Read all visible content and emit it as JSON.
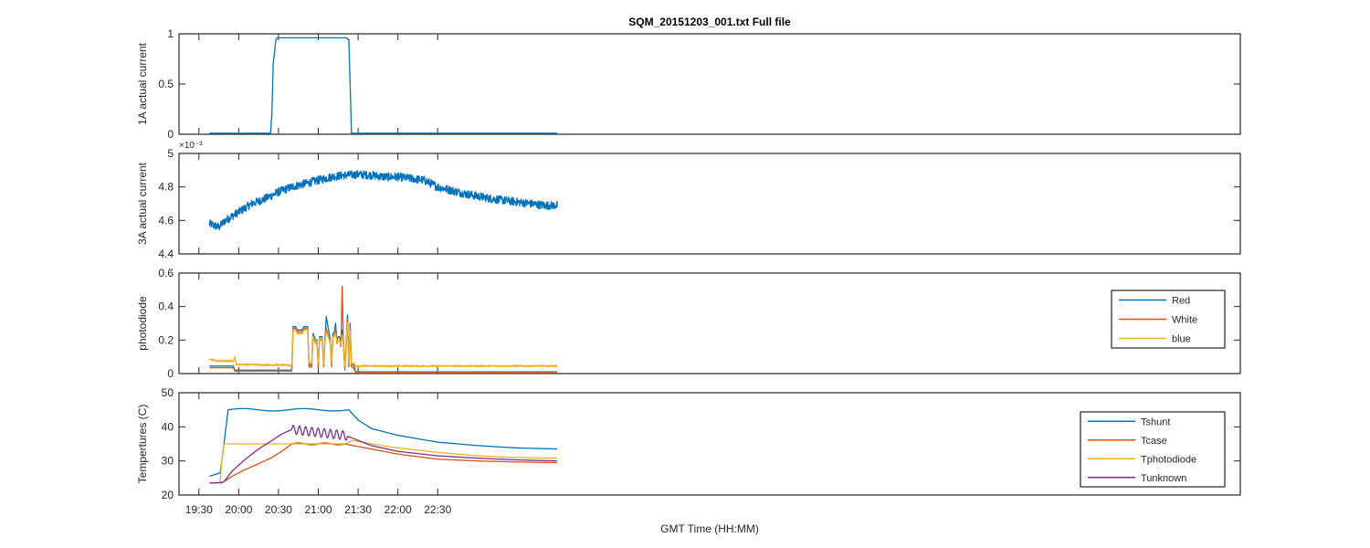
{
  "figure_title": "SQM_20151203_001.txt  Full file",
  "xlabel": "GMT Time (HH:MM)",
  "chart_data": [
    {
      "type": "line",
      "id": "p1",
      "ylabel": "1A actual current",
      "xlim": [
        1155,
        1955
      ],
      "ylim": [
        0,
        1
      ],
      "yticks": [
        0,
        0.5,
        1
      ],
      "ytick_labels": [
        "0",
        "0.5",
        "1"
      ],
      "legend": null,
      "series": [
        {
          "name": "1A actual current",
          "color": "#0072BD",
          "x": [
            1178,
            1224,
            1225,
            1226,
            1228,
            1229,
            1281,
            1283,
            1284,
            1285,
            1440
          ],
          "y": [
            0.01,
            0.01,
            0.2,
            0.7,
            0.94,
            0.96,
            0.96,
            0.94,
            0.5,
            0.01,
            0.01
          ]
        }
      ]
    },
    {
      "type": "line",
      "id": "p2",
      "ylabel": "3A actual current",
      "yexponent": "×10⁻³",
      "xlim": [
        1155,
        1955
      ],
      "ylim": [
        4.4,
        5
      ],
      "yticks": [
        4.4,
        4.6,
        4.8,
        5
      ],
      "ytick_labels": [
        "4.4",
        "4.6",
        "4.8",
        "5"
      ],
      "legend": null,
      "series": [
        {
          "name": "3A actual current",
          "color": "#0072BD",
          "x": [
            1178,
            1185,
            1190,
            1200,
            1210,
            1220,
            1230,
            1240,
            1250,
            1260,
            1270,
            1280,
            1290,
            1300,
            1310,
            1320,
            1330,
            1340,
            1350,
            1360,
            1370,
            1380,
            1390,
            1400,
            1410,
            1420,
            1430,
            1440
          ],
          "y": [
            4.58,
            4.56,
            4.6,
            4.65,
            4.7,
            4.73,
            4.77,
            4.8,
            4.82,
            4.84,
            4.86,
            4.87,
            4.875,
            4.87,
            4.86,
            4.86,
            4.85,
            4.84,
            4.8,
            4.78,
            4.76,
            4.745,
            4.73,
            4.72,
            4.71,
            4.7,
            4.69,
            4.69
          ],
          "noise": 0.025
        }
      ]
    },
    {
      "type": "line",
      "id": "p3",
      "ylabel": "photodiode",
      "xlim": [
        1155,
        1955
      ],
      "ylim": [
        0,
        0.6
      ],
      "yticks": [
        0,
        0.2,
        0.4,
        0.6
      ],
      "ytick_labels": [
        "0",
        "0.2",
        "0.4",
        "0.6"
      ],
      "legend": "top-right",
      "series": [
        {
          "name": "Red",
          "color": "#0072BD",
          "x": [
            1178,
            1196,
            1197,
            1240,
            1241,
            1243,
            1244,
            1248,
            1249,
            1252,
            1253,
            1255,
            1256,
            1258,
            1259,
            1260,
            1261,
            1263,
            1264,
            1265,
            1266,
            1269,
            1270,
            1271,
            1272,
            1273,
            1274,
            1275,
            1276,
            1277,
            1278,
            1279,
            1280,
            1281,
            1282,
            1283,
            1284,
            1285,
            1287,
            1288,
            1440
          ],
          "y": [
            0.045,
            0.045,
            0.02,
            0.02,
            0.28,
            0.28,
            0.26,
            0.26,
            0.28,
            0.28,
            0.05,
            0.05,
            0.24,
            0.2,
            0.2,
            0.05,
            0.22,
            0.22,
            0.05,
            0.2,
            0.34,
            0.2,
            0.05,
            0.24,
            0.24,
            0.3,
            0.2,
            0.22,
            0.22,
            0.18,
            0.26,
            0.18,
            0.03,
            0.18,
            0.35,
            0.05,
            0.3,
            0.05,
            0.05,
            0.01,
            0.01
          ]
        },
        {
          "name": "White",
          "color": "#D95319",
          "x": [
            1178,
            1196,
            1197,
            1240,
            1241,
            1243,
            1244,
            1248,
            1249,
            1252,
            1253,
            1255,
            1256,
            1258,
            1259,
            1260,
            1261,
            1263,
            1264,
            1265,
            1266,
            1269,
            1270,
            1271,
            1272,
            1273,
            1274,
            1275,
            1276,
            1277,
            1278,
            1279,
            1280,
            1281,
            1282,
            1283,
            1284,
            1285,
            1287,
            1288,
            1440
          ],
          "y": [
            0.035,
            0.035,
            0.015,
            0.015,
            0.27,
            0.27,
            0.25,
            0.25,
            0.27,
            0.27,
            0.04,
            0.04,
            0.22,
            0.18,
            0.18,
            0.04,
            0.2,
            0.2,
            0.04,
            0.18,
            0.27,
            0.18,
            0.04,
            0.22,
            0.22,
            0.27,
            0.18,
            0.2,
            0.2,
            0.16,
            0.52,
            0.16,
            0.02,
            0.16,
            0.32,
            0.04,
            0.28,
            0.04,
            0.03,
            0.008,
            0.008
          ]
        },
        {
          "name": "blue",
          "color": "#EDB120",
          "x": [
            1178,
            1185,
            1196,
            1197,
            1198,
            1240,
            1241,
            1243,
            1244,
            1248,
            1249,
            1252,
            1253,
            1255,
            1256,
            1258,
            1259,
            1260,
            1261,
            1263,
            1264,
            1265,
            1266,
            1269,
            1270,
            1271,
            1272,
            1273,
            1274,
            1275,
            1276,
            1277,
            1278,
            1279,
            1280,
            1281,
            1282,
            1283,
            1284,
            1285,
            1287,
            1288,
            1440
          ],
          "y": [
            0.085,
            0.075,
            0.075,
            0.1,
            0.055,
            0.05,
            0.26,
            0.26,
            0.24,
            0.24,
            0.26,
            0.26,
            0.06,
            0.06,
            0.22,
            0.19,
            0.19,
            0.06,
            0.21,
            0.21,
            0.06,
            0.19,
            0.25,
            0.19,
            0.06,
            0.22,
            0.22,
            0.24,
            0.19,
            0.2,
            0.2,
            0.17,
            0.23,
            0.17,
            0.04,
            0.17,
            0.3,
            0.06,
            0.26,
            0.06,
            0.06,
            0.045,
            0.045
          ],
          "noise": 0.005
        }
      ]
    },
    {
      "type": "line",
      "id": "p4",
      "ylabel": "Tempertures (C)",
      "xlim": [
        1155,
        1955
      ],
      "ylim": [
        20,
        50
      ],
      "yticks": [
        20,
        30,
        40,
        50
      ],
      "ytick_labels": [
        "20",
        "30",
        "40",
        "50"
      ],
      "legend": "bottom-right",
      "series": [
        {
          "name": "Tshunt",
          "color": "#0072BD",
          "x": [
            1178,
            1186,
            1188,
            1192,
            1283,
            1290,
            1300,
            1320,
            1350,
            1380,
            1410,
            1440
          ],
          "y": [
            25.5,
            26.5,
            32,
            45,
            45,
            42,
            39.5,
            37.5,
            35.5,
            34.5,
            33.8,
            33.5
          ],
          "wave": [
            1192,
            1283,
            0.35,
            2
          ]
        },
        {
          "name": "Tcase",
          "color": "#D95319",
          "x": [
            1178,
            1186,
            1188,
            1195,
            1205,
            1215,
            1225,
            1235,
            1240,
            1280,
            1286,
            1300,
            1320,
            1350,
            1380,
            1410,
            1440
          ],
          "y": [
            23.5,
            23.7,
            23.7,
            25.5,
            27.5,
            29.2,
            31,
            33.5,
            35,
            35,
            34.5,
            33.5,
            32,
            30.5,
            30,
            29.7,
            29.5
          ],
          "wave": [
            1240,
            1280,
            0.3,
            2
          ]
        },
        {
          "name": "Tphotodiode",
          "color": "#EDB120",
          "x": [
            1186,
            1187,
            1189,
            1280,
            1286,
            1300,
            1320,
            1350,
            1380,
            1410,
            1440
          ],
          "y": [
            23.7,
            29,
            35,
            35,
            36,
            35,
            33.8,
            32.5,
            31.5,
            31,
            30.8
          ]
        },
        {
          "name": "Tunknown",
          "color": "#7E2F8E",
          "x": [
            1178,
            1187,
            1189,
            1195,
            1205,
            1215,
            1225,
            1233,
            1240,
            1280,
            1285,
            1300,
            1320,
            1350,
            1380,
            1410,
            1440
          ],
          "y": [
            23.5,
            23.6,
            24,
            27,
            30.5,
            33.5,
            36,
            38,
            39.2,
            37.5,
            36.8,
            34.5,
            32.8,
            31.5,
            30.8,
            30.3,
            30
          ],
          "wave": [
            1240,
            1282,
            1.3,
            9
          ]
        }
      ]
    }
  ],
  "xticks": [
    1170,
    1200,
    1230,
    1260,
    1290,
    1320,
    1350
  ],
  "xtick_labels": [
    "19:30",
    "20:00",
    "20:30",
    "21:00",
    "21:30",
    "22:00",
    "22:30"
  ]
}
